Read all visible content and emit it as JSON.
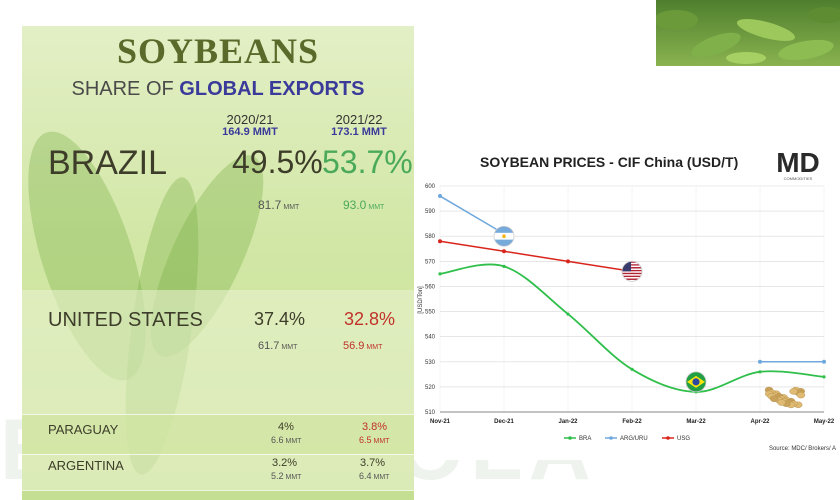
{
  "watermark": "E AGRICOLA",
  "panel": {
    "title": "SOYBEANS",
    "subtitle_prefix": "SHARE OF",
    "subtitle_emph": "GLOBAL EXPORTS",
    "years": [
      {
        "label": "2020/21",
        "total": "164.9 MMT"
      },
      {
        "label": "2021/22",
        "total": "173.1 MMT"
      }
    ],
    "unit": "MMT",
    "rows": [
      {
        "country": "BRAZIL",
        "pct_2021": "49.5%",
        "pct_2122": "53.7%",
        "amt_2021": "81.7",
        "amt_2122": "93.0",
        "change": "up"
      },
      {
        "country": "UNITED STATES",
        "pct_2021": "37.4%",
        "pct_2122": "32.8%",
        "amt_2021": "61.7",
        "amt_2122": "56.9",
        "change": "down"
      },
      {
        "country": "PARAGUAY",
        "pct_2021": "4%",
        "pct_2122": "3.8%",
        "amt_2021": "6.6",
        "amt_2122": "6.5",
        "change": "down"
      },
      {
        "country": "ARGENTINA",
        "pct_2021": "3.2%",
        "pct_2122": "3.7%",
        "amt_2021": "5.2",
        "amt_2122": "6.4",
        "change": "up"
      }
    ],
    "colors": {
      "up": "#4aaa5a",
      "down": "#c0322a",
      "neutral": "#3d3d2a"
    }
  },
  "chart_data": {
    "type": "line",
    "title": "SOYBEAN PRICES - CIF China (USD/T)",
    "ylabel": "[USD/Ton]",
    "source": "Source: MDC/ Brokers/ A",
    "logo_text": "MD",
    "logo_sub": "COMMODITIES",
    "x": [
      "Nov-21",
      "Dec-21",
      "Jan-22",
      "Feb-22",
      "Mar-22",
      "Apr-22",
      "May-22"
    ],
    "ylim": [
      510,
      600
    ],
    "yticks": [
      510,
      520,
      530,
      540,
      550,
      560,
      570,
      580,
      590,
      600
    ],
    "grid": true,
    "legend_position": "bottom",
    "series": [
      {
        "name": "BRA",
        "color": "#2fbf4a",
        "smooth": true,
        "values": [
          565,
          568,
          549,
          527,
          518,
          526,
          524
        ],
        "markers": false
      },
      {
        "name": "ARG/URU",
        "color": "#6fa8dc",
        "smooth": false,
        "values": [
          596,
          581,
          null,
          null,
          null,
          530,
          530
        ],
        "markers": true
      },
      {
        "name": "USG",
        "color": "#d9261c",
        "smooth": false,
        "values": [
          578,
          574,
          570,
          566,
          null,
          null,
          null
        ],
        "markers": true
      }
    ],
    "flags": [
      {
        "series": "ARG/URU",
        "country": "argentina",
        "at": "Dec-21",
        "value": 580
      },
      {
        "series": "USG",
        "country": "usa",
        "at": "Feb-22",
        "value": 566
      },
      {
        "series": "BRA",
        "country": "brazil",
        "at": "Mar-22",
        "value": 522
      }
    ]
  }
}
